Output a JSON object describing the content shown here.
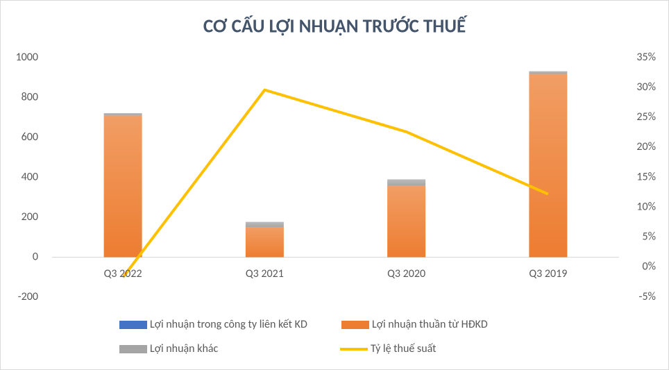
{
  "chart_data": {
    "type": "bar",
    "stacked": true,
    "title": "CƠ CẤU LỢI NHUẬN TRƯỚC THUẾ",
    "categories": [
      "Q3 2022",
      "Q3 2021",
      "Q3 2020",
      "Q3 2019"
    ],
    "series": [
      {
        "name": "Lợi nhuận trong công ty liên kết KD",
        "type": "bar",
        "color": "#4472c4",
        "values": [
          0,
          0,
          0,
          0
        ]
      },
      {
        "name": "Lợi nhuận thuần từ HĐKD",
        "type": "bar",
        "color": "#ed7d31",
        "values": [
          710,
          150,
          358,
          918
        ]
      },
      {
        "name": "Lợi nhuận khác",
        "type": "bar",
        "color": "#a5a5a5",
        "values": [
          12,
          27,
          32,
          14
        ]
      },
      {
        "name": "Tỷ lệ thuế suất",
        "type": "line",
        "axis": "y2",
        "color": "#ffc000",
        "values": [
          -1.7,
          29.6,
          22.6,
          12.2
        ]
      }
    ],
    "ylim": [
      -200,
      1000
    ],
    "yticks": [
      -200,
      0,
      200,
      400,
      600,
      800,
      1000
    ],
    "y2lim": [
      -5,
      35
    ],
    "y2ticks": [
      {
        "value": -5,
        "label": "-5%"
      },
      {
        "value": 0,
        "label": "0%"
      },
      {
        "value": 5,
        "label": "5%"
      },
      {
        "value": 10,
        "label": "10%"
      },
      {
        "value": 15,
        "label": "15%"
      },
      {
        "value": 20,
        "label": "20%"
      },
      {
        "value": 25,
        "label": "25%"
      },
      {
        "value": 30,
        "label": "30%"
      },
      {
        "value": 35,
        "label": "35%"
      }
    ],
    "grid": false,
    "legend": "bottom"
  }
}
